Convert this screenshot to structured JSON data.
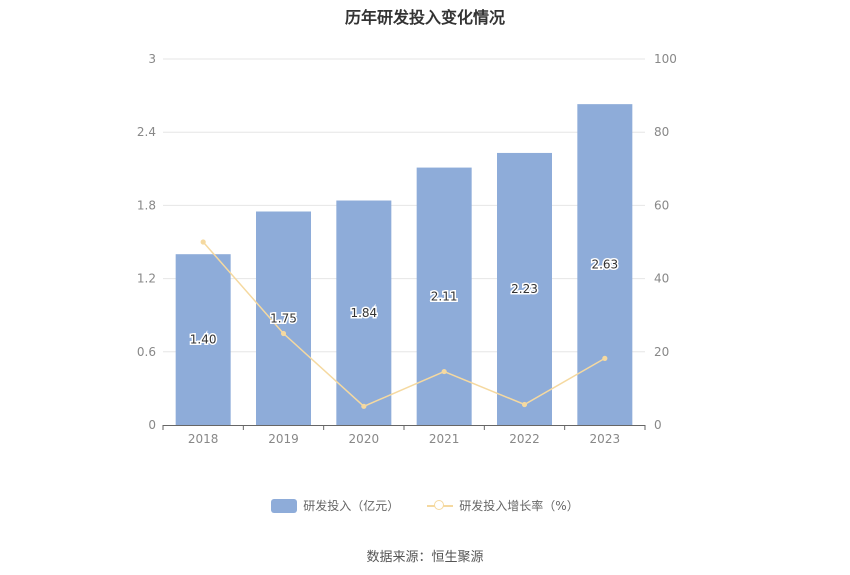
{
  "chart_data": {
    "type": "bar",
    "title": "历年研发投入变化情况",
    "categories": [
      "2018",
      "2019",
      "2020",
      "2021",
      "2022",
      "2023"
    ],
    "series": [
      {
        "name": "研发投入（亿元）",
        "type": "bar",
        "axis": "left",
        "values": [
          1.4,
          1.75,
          1.84,
          2.11,
          2.23,
          2.63
        ],
        "labels": [
          "1.40",
          "1.75",
          "1.84",
          "2.11",
          "2.23",
          "2.63"
        ],
        "color": "#8eacd9"
      },
      {
        "name": "研发投入增长率（%）",
        "type": "line",
        "axis": "right",
        "values": [
          50.0,
          25.0,
          5.1,
          14.6,
          5.6,
          18.2
        ],
        "color": "#f5d9a0"
      }
    ],
    "y_left": {
      "ticks": [
        "0",
        "0.6",
        "1.2",
        "1.8",
        "2.4",
        "3"
      ],
      "ylim": [
        0,
        3
      ]
    },
    "y_right": {
      "ticks": [
        "0",
        "20",
        "40",
        "60",
        "80",
        "100"
      ],
      "ylim": [
        0,
        100
      ]
    },
    "grid": true,
    "legend": "bottom"
  },
  "source": "数据来源：恒生聚源"
}
